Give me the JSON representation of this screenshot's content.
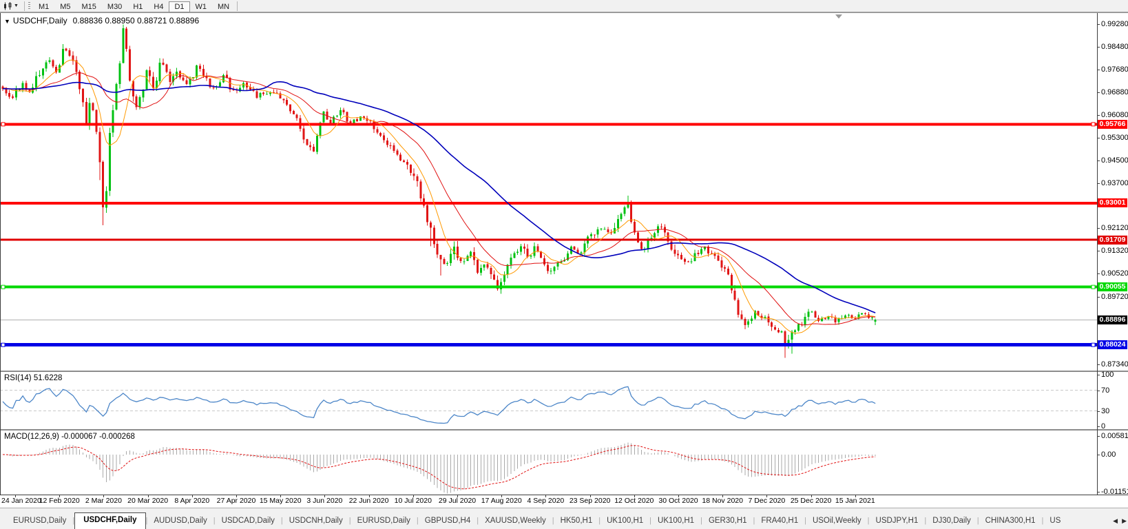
{
  "toolbar": {
    "timeframes": [
      "M1",
      "M5",
      "M15",
      "M30",
      "H1",
      "H4",
      "D1",
      "W1",
      "MN"
    ],
    "active_timeframe": "D1"
  },
  "icons": {
    "chart_type": "candlestick-chart-icon",
    "dropdown": "▼",
    "header_collapse": "▼",
    "tab_scroll_left": "◀",
    "tab_scroll_right": "▶"
  },
  "header": {
    "symbol": "USDCHF,Daily",
    "ohlc": "0.88836 0.88950 0.88721 0.88896"
  },
  "price_axis": {
    "ticks": [
      "0.99280",
      "0.98480",
      "0.97680",
      "0.96880",
      "0.96080",
      "0.95300",
      "0.94500",
      "0.93700",
      "0.92120",
      "0.91320",
      "0.90520",
      "0.89720",
      "0.87340"
    ]
  },
  "rsi_pane": {
    "label": "RSI(14) 51.6228",
    "axis_ticks": [
      "100",
      "70",
      "30",
      "0"
    ]
  },
  "macd_pane": {
    "label": "MACD(12,26,9) -0.000067 -0.000268",
    "axis_top": "0.005818",
    "axis_zero": "0.00",
    "axis_bottom": "-0.011514"
  },
  "date_axis": {
    "labels": [
      "24 Jan 2020",
      "12 Feb 2020",
      "2 Mar 2020",
      "20 Mar 2020",
      "8 Apr 2020",
      "27 Apr 2020",
      "15 May 2020",
      "3 Jun 2020",
      "22 Jun 2020",
      "10 Jul 2020",
      "29 Jul 2020",
      "17 Aug 2020",
      "4 Sep 2020",
      "23 Sep 2020",
      "12 Oct 2020",
      "30 Oct 2020",
      "18 Nov 2020",
      "7 Dec 2020",
      "25 Dec 2020",
      "15 Jan 2021"
    ]
  },
  "tabs": {
    "items": [
      "EURUSD,Daily",
      "USDCHF,Daily",
      "AUDUSD,Daily",
      "USDCAD,Daily",
      "USDCNH,Daily",
      "EURUSD,Daily",
      "GBPUSD,H4",
      "XAUUSD,Weekly",
      "HK50,H1",
      "UK100,H1",
      "UK100,H1",
      "GER30,H1",
      "FRA40,H1",
      "USOil,Weekly",
      "USDJPY,H1",
      "DJ30,Daily",
      "CHINA300,H1",
      "US"
    ],
    "active_index": 1
  },
  "chart_data": {
    "type": "candlestick",
    "title": "USDCHF,Daily",
    "bars": 262,
    "ylim": [
      0.87122,
      0.99667
    ],
    "last_ohlc": {
      "open": 0.88836,
      "high": 0.8895,
      "low": 0.88721,
      "close": 0.88896
    },
    "up_color": "#00C112",
    "down_color": "#E01515",
    "price_anchors": [
      [
        0,
        0.97
      ],
      [
        3,
        0.9665
      ],
      [
        6,
        0.972
      ],
      [
        8,
        0.969
      ],
      [
        11,
        0.9755
      ],
      [
        14,
        0.98
      ],
      [
        16,
        0.976
      ],
      [
        18,
        0.9838
      ],
      [
        20,
        0.9822
      ],
      [
        21,
        0.98
      ],
      [
        24,
        0.9652
      ],
      [
        25,
        0.959
      ],
      [
        26,
        0.9678
      ],
      [
        27,
        0.963
      ],
      [
        29,
        0.9455
      ],
      [
        30,
        0.9285
      ],
      [
        31,
        0.935
      ],
      [
        32,
        0.956
      ],
      [
        33,
        0.964
      ],
      [
        35,
        0.978
      ],
      [
        36,
        0.9895
      ],
      [
        37,
        0.985
      ],
      [
        38,
        0.972
      ],
      [
        40,
        0.9615
      ],
      [
        42,
        0.97
      ],
      [
        43,
        0.9775
      ],
      [
        45,
        0.969
      ],
      [
        47,
        0.9788
      ],
      [
        50,
        0.973
      ],
      [
        52,
        0.9758
      ],
      [
        55,
        0.972
      ],
      [
        58,
        0.9778
      ],
      [
        60,
        0.9745
      ],
      [
        63,
        0.97
      ],
      [
        66,
        0.9738
      ],
      [
        69,
        0.9682
      ],
      [
        72,
        0.972
      ],
      [
        76,
        0.9672
      ],
      [
        80,
        0.97
      ],
      [
        84,
        0.9652
      ],
      [
        87,
        0.9615
      ],
      [
        90,
        0.9532
      ],
      [
        93,
        0.949
      ],
      [
        96,
        0.9622
      ],
      [
        98,
        0.959
      ],
      [
        101,
        0.9628
      ],
      [
        104,
        0.958
      ],
      [
        108,
        0.9604
      ],
      [
        111,
        0.9562
      ],
      [
        114,
        0.953
      ],
      [
        117,
        0.9487
      ],
      [
        120,
        0.945
      ],
      [
        123,
        0.9382
      ],
      [
        125,
        0.9322
      ],
      [
        128,
        0.9202
      ],
      [
        130,
        0.9097
      ],
      [
        133,
        0.9082
      ],
      [
        135,
        0.9138
      ],
      [
        137,
        0.9082
      ],
      [
        140,
        0.9118
      ],
      [
        142,
        0.9062
      ],
      [
        144,
        0.909
      ],
      [
        147,
        0.9032
      ],
      [
        148,
        0.9012
      ],
      [
        150,
        0.9078
      ],
      [
        153,
        0.9128
      ],
      [
        155,
        0.9158
      ],
      [
        157,
        0.9106
      ],
      [
        159,
        0.9138
      ],
      [
        162,
        0.9082
      ],
      [
        164,
        0.906
      ],
      [
        167,
        0.9098
      ],
      [
        170,
        0.9138
      ],
      [
        173,
        0.912
      ],
      [
        176,
        0.9178
      ],
      [
        179,
        0.9218
      ],
      [
        182,
        0.919
      ],
      [
        185,
        0.9268
      ],
      [
        187,
        0.9298
      ],
      [
        188,
        0.9242
      ],
      [
        190,
        0.9162
      ],
      [
        192,
        0.9132
      ],
      [
        194,
        0.9178
      ],
      [
        197,
        0.9218
      ],
      [
        200,
        0.915
      ],
      [
        202,
        0.9102
      ],
      [
        204,
        0.9082
      ],
      [
        207,
        0.9118
      ],
      [
        210,
        0.914
      ],
      [
        212,
        0.912
      ],
      [
        215,
        0.9082
      ],
      [
        217,
        0.905
      ],
      [
        218,
        0.8992
      ],
      [
        220,
        0.8922
      ],
      [
        222,
        0.8882
      ],
      [
        225,
        0.8918
      ],
      [
        228,
        0.89
      ],
      [
        230,
        0.8857
      ],
      [
        233,
        0.8842
      ],
      [
        234,
        0.8802
      ],
      [
        236,
        0.885
      ],
      [
        239,
        0.8878
      ],
      [
        241,
        0.8918
      ],
      [
        244,
        0.8892
      ],
      [
        247,
        0.8908
      ],
      [
        249,
        0.8886
      ],
      [
        252,
        0.8918
      ],
      [
        254,
        0.8896
      ],
      [
        257,
        0.8912
      ],
      [
        260,
        0.88896
      ],
      [
        261,
        0.88896
      ]
    ],
    "wick_events": [
      {
        "bar": 29,
        "low": 0.938
      },
      {
        "bar": 30,
        "low": 0.9222
      },
      {
        "bar": 36,
        "high": 0.992
      },
      {
        "bar": 128,
        "low": 0.9148
      },
      {
        "bar": 131,
        "low": 0.9046
      },
      {
        "bar": 148,
        "low": 0.8999
      },
      {
        "bar": 187,
        "high": 0.9326
      },
      {
        "bar": 234,
        "low": 0.8757
      },
      {
        "bar": 236,
        "low": 0.8772
      }
    ],
    "moving_averages": [
      {
        "period": 8,
        "color": "#FF9900",
        "width": 1
      },
      {
        "period": 20,
        "color": "#E01010",
        "width": 1
      },
      {
        "period": 50,
        "color": "#0000BB",
        "width": 1.6
      }
    ],
    "horizontal_lines": [
      {
        "label": "0.95766",
        "value": 0.95766,
        "color": "#FF0000",
        "width": 4,
        "handles": true
      },
      {
        "label": "0.93001",
        "value": 0.93001,
        "color": "#FF0000",
        "width": 4,
        "handles": false
      },
      {
        "label": "0.91709",
        "value": 0.91709,
        "color": "#E00000",
        "width": 3,
        "handles": false
      },
      {
        "label": "0.90055",
        "value": 0.90055,
        "color": "#00D800",
        "width": 4,
        "handles": true
      },
      {
        "label": "0.88024",
        "value": 0.88024,
        "color": "#0000E6",
        "width": 5,
        "handles": true
      }
    ],
    "current_price": {
      "label": "0.88896",
      "value": 0.88896,
      "line_color": "#B0B0B0",
      "label_bg": "#000000"
    },
    "rsi": {
      "period": 14,
      "color": "#4C86C8",
      "levels": [
        70,
        30
      ],
      "ylim": [
        0,
        100
      ]
    },
    "macd": {
      "fast": 12,
      "slow": 26,
      "signal_period": 9,
      "hist_color": "#A9A9A9",
      "signal_color": "#E01010",
      "ylim": [
        -0.011514,
        0.005818
      ]
    }
  }
}
